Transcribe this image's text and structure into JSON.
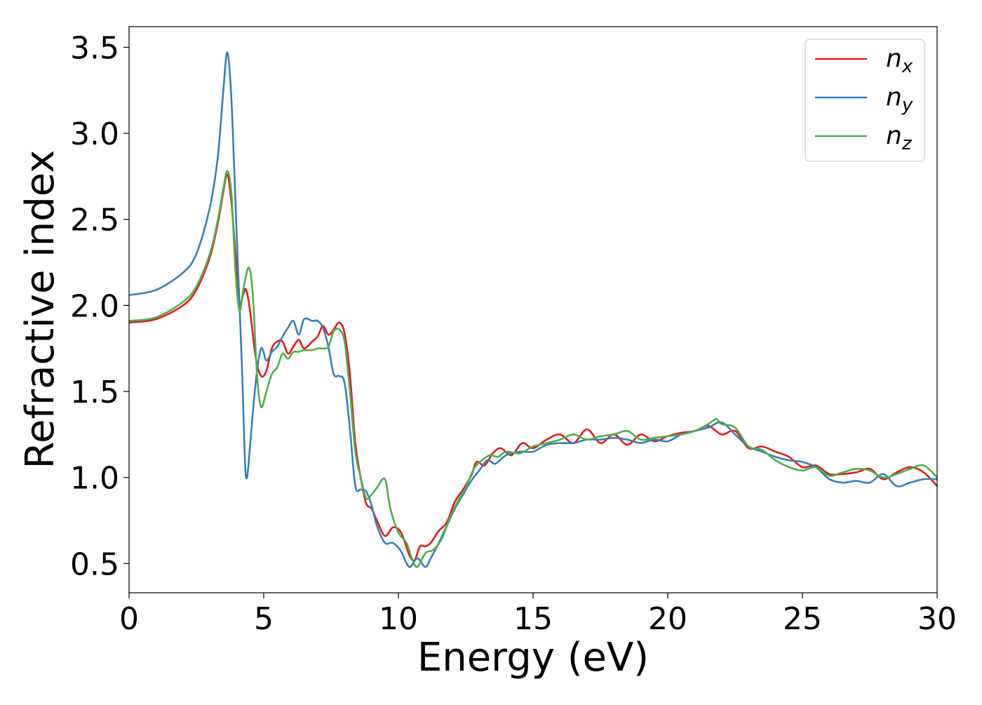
{
  "chart_data": {
    "type": "line",
    "xlabel": "Energy (eV)",
    "ylabel": "Refractive index",
    "xlim": [
      0,
      30
    ],
    "ylim": [
      0.33,
      3.62
    ],
    "xticks": [
      0,
      5,
      10,
      15,
      20,
      25,
      30
    ],
    "xtick_labels": [
      "0",
      "5",
      "10",
      "15",
      "20",
      "25",
      "30"
    ],
    "yticks": [
      0.5,
      1.0,
      1.5,
      2.0,
      2.5,
      3.0,
      3.5
    ],
    "ytick_labels": [
      "0.5",
      "1.0",
      "1.5",
      "2.0",
      "2.5",
      "3.0",
      "3.5"
    ],
    "grid": false,
    "legend_position": "top-right",
    "series": [
      {
        "name": "n_x",
        "legend_main": "n",
        "legend_sub": "x",
        "color": "#e41a1c",
        "points": [
          [
            0,
            1.9
          ],
          [
            1,
            1.92
          ],
          [
            2,
            2.0
          ],
          [
            2.5,
            2.09
          ],
          [
            3,
            2.28
          ],
          [
            3.3,
            2.48
          ],
          [
            3.5,
            2.66
          ],
          [
            3.65,
            2.76
          ],
          [
            3.8,
            2.6
          ],
          [
            3.95,
            2.3
          ],
          [
            4.1,
            2.02
          ],
          [
            4.25,
            2.07
          ],
          [
            4.35,
            2.09
          ],
          [
            4.5,
            1.96
          ],
          [
            4.7,
            1.7
          ],
          [
            4.9,
            1.59
          ],
          [
            5.1,
            1.62
          ],
          [
            5.3,
            1.75
          ],
          [
            5.5,
            1.79
          ],
          [
            5.7,
            1.79
          ],
          [
            5.9,
            1.72
          ],
          [
            6.1,
            1.76
          ],
          [
            6.3,
            1.8
          ],
          [
            6.5,
            1.75
          ],
          [
            6.8,
            1.79
          ],
          [
            7.0,
            1.82
          ],
          [
            7.2,
            1.88
          ],
          [
            7.4,
            1.83
          ],
          [
            7.6,
            1.86
          ],
          [
            7.8,
            1.9
          ],
          [
            8.0,
            1.84
          ],
          [
            8.2,
            1.6
          ],
          [
            8.4,
            1.2
          ],
          [
            8.6,
            1.0
          ],
          [
            8.8,
            0.85
          ],
          [
            9.0,
            0.82
          ],
          [
            9.2,
            0.75
          ],
          [
            9.5,
            0.66
          ],
          [
            9.8,
            0.71
          ],
          [
            10.1,
            0.68
          ],
          [
            10.4,
            0.55
          ],
          [
            10.6,
            0.52
          ],
          [
            10.8,
            0.6
          ],
          [
            11.0,
            0.6
          ],
          [
            11.2,
            0.62
          ],
          [
            11.5,
            0.69
          ],
          [
            11.8,
            0.74
          ],
          [
            12.1,
            0.86
          ],
          [
            12.4,
            0.93
          ],
          [
            12.7,
            1.01
          ],
          [
            12.9,
            1.09
          ],
          [
            13.2,
            1.07
          ],
          [
            13.5,
            1.14
          ],
          [
            13.8,
            1.17
          ],
          [
            14.2,
            1.13
          ],
          [
            14.6,
            1.2
          ],
          [
            15.0,
            1.17
          ],
          [
            15.5,
            1.22
          ],
          [
            16.0,
            1.25
          ],
          [
            16.5,
            1.2
          ],
          [
            17.0,
            1.28
          ],
          [
            17.5,
            1.2
          ],
          [
            18.0,
            1.25
          ],
          [
            18.5,
            1.19
          ],
          [
            19.0,
            1.25
          ],
          [
            19.5,
            1.21
          ],
          [
            20.0,
            1.24
          ],
          [
            20.5,
            1.26
          ],
          [
            21.0,
            1.27
          ],
          [
            21.5,
            1.3
          ],
          [
            22.0,
            1.25
          ],
          [
            22.5,
            1.27
          ],
          [
            23.0,
            1.17
          ],
          [
            23.5,
            1.18
          ],
          [
            24.0,
            1.15
          ],
          [
            24.5,
            1.12
          ],
          [
            25.0,
            1.06
          ],
          [
            25.5,
            1.07
          ],
          [
            26.0,
            1.02
          ],
          [
            26.5,
            1.02
          ],
          [
            27.0,
            1.03
          ],
          [
            27.5,
            1.05
          ],
          [
            28.0,
            0.99
          ],
          [
            28.5,
            1.03
          ],
          [
            29.0,
            1.06
          ],
          [
            29.5,
            1.03
          ],
          [
            30.0,
            0.95
          ]
        ]
      },
      {
        "name": "n_y",
        "legend_main": "n",
        "legend_sub": "y",
        "color": "#377eb8",
        "points": [
          [
            0,
            2.06
          ],
          [
            1,
            2.09
          ],
          [
            2,
            2.19
          ],
          [
            2.5,
            2.3
          ],
          [
            3,
            2.57
          ],
          [
            3.3,
            2.87
          ],
          [
            3.5,
            3.25
          ],
          [
            3.65,
            3.47
          ],
          [
            3.8,
            3.2
          ],
          [
            3.95,
            2.6
          ],
          [
            4.05,
            2.2
          ],
          [
            4.2,
            1.6
          ],
          [
            4.3,
            1.1
          ],
          [
            4.38,
            1.0
          ],
          [
            4.5,
            1.2
          ],
          [
            4.7,
            1.55
          ],
          [
            4.9,
            1.75
          ],
          [
            5.1,
            1.68
          ],
          [
            5.3,
            1.73
          ],
          [
            5.5,
            1.76
          ],
          [
            5.7,
            1.82
          ],
          [
            5.9,
            1.87
          ],
          [
            6.1,
            1.91
          ],
          [
            6.3,
            1.83
          ],
          [
            6.5,
            1.92
          ],
          [
            6.8,
            1.91
          ],
          [
            7.0,
            1.91
          ],
          [
            7.2,
            1.87
          ],
          [
            7.4,
            1.76
          ],
          [
            7.6,
            1.6
          ],
          [
            7.8,
            1.59
          ],
          [
            8.0,
            1.55
          ],
          [
            8.2,
            1.28
          ],
          [
            8.4,
            0.95
          ],
          [
            8.6,
            0.93
          ],
          [
            8.8,
            0.92
          ],
          [
            9.0,
            0.84
          ],
          [
            9.2,
            0.72
          ],
          [
            9.5,
            0.62
          ],
          [
            9.8,
            0.62
          ],
          [
            10.1,
            0.57
          ],
          [
            10.4,
            0.48
          ],
          [
            10.7,
            0.53
          ],
          [
            11.0,
            0.48
          ],
          [
            11.2,
            0.53
          ],
          [
            11.5,
            0.62
          ],
          [
            11.8,
            0.72
          ],
          [
            12.1,
            0.82
          ],
          [
            12.4,
            0.9
          ],
          [
            12.7,
            0.98
          ],
          [
            13.0,
            1.04
          ],
          [
            13.3,
            1.1
          ],
          [
            13.6,
            1.08
          ],
          [
            14.0,
            1.13
          ],
          [
            14.5,
            1.15
          ],
          [
            15.0,
            1.15
          ],
          [
            15.5,
            1.19
          ],
          [
            16.0,
            1.2
          ],
          [
            16.5,
            1.2
          ],
          [
            17.0,
            1.22
          ],
          [
            17.5,
            1.22
          ],
          [
            18.0,
            1.23
          ],
          [
            18.5,
            1.22
          ],
          [
            19.0,
            1.2
          ],
          [
            19.5,
            1.22
          ],
          [
            20.0,
            1.21
          ],
          [
            20.5,
            1.25
          ],
          [
            21.0,
            1.27
          ],
          [
            21.5,
            1.29
          ],
          [
            22.0,
            1.32
          ],
          [
            22.5,
            1.25
          ],
          [
            23.0,
            1.18
          ],
          [
            23.5,
            1.15
          ],
          [
            24.0,
            1.12
          ],
          [
            24.5,
            1.1
          ],
          [
            25.0,
            1.09
          ],
          [
            25.5,
            1.06
          ],
          [
            26.0,
            0.99
          ],
          [
            26.5,
            0.97
          ],
          [
            27.0,
            0.98
          ],
          [
            27.5,
            0.97
          ],
          [
            28.0,
            1.02
          ],
          [
            28.5,
            0.95
          ],
          [
            29.0,
            0.97
          ],
          [
            29.5,
            0.99
          ],
          [
            30.0,
            0.99
          ]
        ]
      },
      {
        "name": "n_z",
        "legend_main": "n",
        "legend_sub": "z",
        "color": "#4daf4a",
        "points": [
          [
            0,
            1.91
          ],
          [
            1,
            1.93
          ],
          [
            2,
            2.02
          ],
          [
            2.5,
            2.11
          ],
          [
            3,
            2.3
          ],
          [
            3.3,
            2.5
          ],
          [
            3.5,
            2.68
          ],
          [
            3.65,
            2.78
          ],
          [
            3.8,
            2.65
          ],
          [
            3.95,
            2.2
          ],
          [
            4.1,
            1.97
          ],
          [
            4.25,
            2.1
          ],
          [
            4.45,
            2.22
          ],
          [
            4.6,
            2.05
          ],
          [
            4.75,
            1.6
          ],
          [
            4.9,
            1.41
          ],
          [
            5.1,
            1.5
          ],
          [
            5.3,
            1.6
          ],
          [
            5.5,
            1.64
          ],
          [
            5.7,
            1.72
          ],
          [
            5.9,
            1.69
          ],
          [
            6.1,
            1.73
          ],
          [
            6.3,
            1.73
          ],
          [
            6.5,
            1.74
          ],
          [
            6.8,
            1.74
          ],
          [
            7.0,
            1.75
          ],
          [
            7.2,
            1.75
          ],
          [
            7.4,
            1.76
          ],
          [
            7.6,
            1.85
          ],
          [
            7.8,
            1.86
          ],
          [
            8.0,
            1.79
          ],
          [
            8.2,
            1.5
          ],
          [
            8.4,
            1.15
          ],
          [
            8.6,
            1.0
          ],
          [
            8.8,
            0.88
          ],
          [
            9.0,
            0.9
          ],
          [
            9.2,
            0.94
          ],
          [
            9.5,
            0.99
          ],
          [
            9.7,
            0.82
          ],
          [
            10.0,
            0.68
          ],
          [
            10.3,
            0.62
          ],
          [
            10.5,
            0.53
          ],
          [
            10.7,
            0.48
          ],
          [
            11.0,
            0.56
          ],
          [
            11.3,
            0.58
          ],
          [
            11.6,
            0.64
          ],
          [
            11.9,
            0.76
          ],
          [
            12.2,
            0.86
          ],
          [
            12.5,
            0.94
          ],
          [
            12.8,
            1.05
          ],
          [
            13.1,
            1.1
          ],
          [
            13.4,
            1.13
          ],
          [
            13.7,
            1.12
          ],
          [
            14.0,
            1.15
          ],
          [
            14.5,
            1.14
          ],
          [
            15.0,
            1.18
          ],
          [
            15.5,
            1.2
          ],
          [
            16.0,
            1.22
          ],
          [
            16.5,
            1.25
          ],
          [
            17.0,
            1.22
          ],
          [
            17.5,
            1.24
          ],
          [
            18.0,
            1.25
          ],
          [
            18.5,
            1.27
          ],
          [
            19.0,
            1.22
          ],
          [
            19.5,
            1.23
          ],
          [
            20.0,
            1.24
          ],
          [
            20.5,
            1.25
          ],
          [
            21.0,
            1.27
          ],
          [
            21.5,
            1.31
          ],
          [
            21.8,
            1.34
          ],
          [
            22.0,
            1.31
          ],
          [
            22.5,
            1.29
          ],
          [
            23.0,
            1.18
          ],
          [
            23.5,
            1.16
          ],
          [
            24.0,
            1.1
          ],
          [
            24.5,
            1.06
          ],
          [
            25.0,
            1.04
          ],
          [
            25.5,
            1.06
          ],
          [
            26.0,
            1.01
          ],
          [
            26.5,
            1.03
          ],
          [
            27.0,
            1.05
          ],
          [
            27.5,
            1.04
          ],
          [
            28.0,
            1.0
          ],
          [
            28.5,
            1.02
          ],
          [
            29.0,
            1.05
          ],
          [
            29.5,
            1.07
          ],
          [
            30.0,
            1.0
          ]
        ]
      }
    ]
  }
}
